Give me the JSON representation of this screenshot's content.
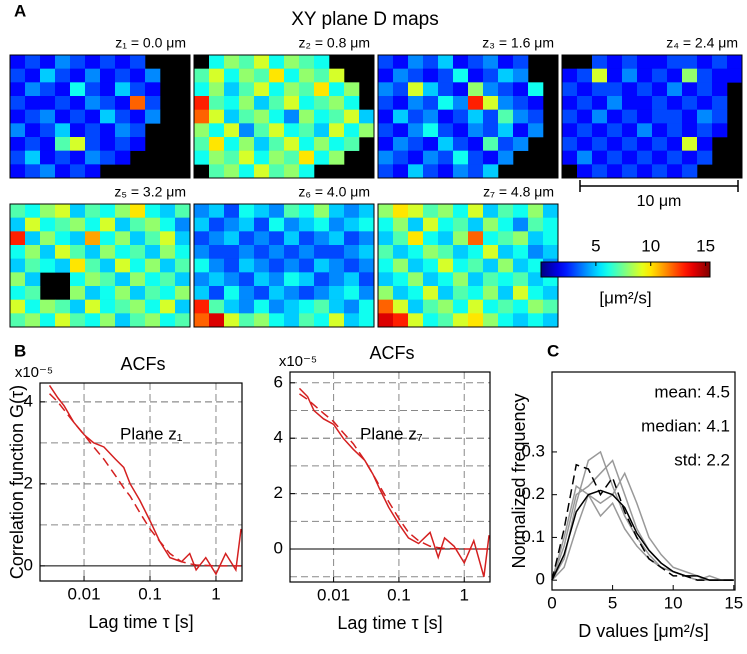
{
  "figure": {
    "panel_labels": [
      "A",
      "B",
      "C"
    ],
    "title": "XY plane D maps",
    "scale_bar": "10 μm"
  },
  "chart_data": [
    {
      "type": "heatmap",
      "title": "z₁ = 0.0 μm",
      "cmap": "jet",
      "zlim": [
        0,
        15.4
      ],
      "values": [
        [
          2,
          3,
          2,
          4,
          3,
          2,
          3,
          2,
          3,
          null,
          null,
          null
        ],
        [
          3,
          2,
          5,
          3,
          2,
          4,
          2,
          3,
          2,
          4,
          null,
          null
        ],
        [
          2,
          4,
          3,
          2,
          6,
          3,
          2,
          5,
          3,
          2,
          null,
          null
        ],
        [
          3,
          2,
          2,
          3,
          2,
          4,
          3,
          2,
          12,
          3,
          null,
          null
        ],
        [
          2,
          3,
          4,
          2,
          3,
          2,
          5,
          3,
          2,
          4,
          null,
          null
        ],
        [
          4,
          2,
          3,
          5,
          2,
          3,
          2,
          4,
          3,
          null,
          null,
          null
        ],
        [
          2,
          3,
          2,
          7,
          9,
          3,
          2,
          3,
          2,
          null,
          null,
          null
        ],
        [
          3,
          5,
          2,
          3,
          2,
          4,
          3,
          2,
          null,
          null,
          null,
          null
        ],
        [
          2,
          3,
          4,
          2,
          3,
          2,
          null,
          null,
          null,
          null,
          null,
          null
        ]
      ]
    },
    {
      "type": "heatmap",
      "title": "z₂ = 0.8 μm",
      "cmap": "jet",
      "zlim": [
        0,
        15.4
      ],
      "values": [
        [
          null,
          6,
          8,
          7,
          9,
          6,
          8,
          7,
          6,
          null,
          null,
          null
        ],
        [
          7,
          9,
          6,
          8,
          7,
          10,
          6,
          8,
          7,
          9,
          null,
          null
        ],
        [
          6,
          8,
          5,
          7,
          9,
          6,
          8,
          7,
          10,
          6,
          8,
          null
        ],
        [
          13,
          7,
          6,
          8,
          5,
          7,
          9,
          6,
          7,
          8,
          6,
          null
        ],
        [
          12,
          9,
          5,
          7,
          8,
          6,
          4,
          8,
          6,
          7,
          9,
          5
        ],
        [
          8,
          6,
          9,
          4,
          7,
          9,
          6,
          7,
          5,
          9,
          6,
          8
        ],
        [
          7,
          10,
          6,
          8,
          5,
          7,
          9,
          6,
          8,
          6,
          7,
          null
        ],
        [
          6,
          8,
          7,
          9,
          6,
          8,
          7,
          10,
          6,
          8,
          null,
          null
        ],
        [
          null,
          7,
          8,
          6,
          9,
          7,
          8,
          6,
          null,
          null,
          null,
          null
        ]
      ]
    },
    {
      "type": "heatmap",
      "title": "z₃ = 1.6 μm",
      "cmap": "jet",
      "zlim": [
        0,
        15.4
      ],
      "values": [
        [
          3,
          2,
          4,
          3,
          5,
          2,
          3,
          4,
          2,
          3,
          null,
          null
        ],
        [
          2,
          4,
          3,
          2,
          3,
          6,
          2,
          3,
          5,
          4,
          null,
          null
        ],
        [
          4,
          3,
          9,
          5,
          3,
          2,
          8,
          4,
          3,
          2,
          6,
          null
        ],
        [
          3,
          2,
          4,
          3,
          6,
          4,
          13,
          9,
          4,
          3,
          2,
          null
        ],
        [
          2,
          5,
          3,
          4,
          2,
          3,
          5,
          3,
          7,
          4,
          3,
          null
        ],
        [
          3,
          2,
          4,
          6,
          3,
          2,
          4,
          3,
          5,
          2,
          4,
          null
        ],
        [
          2,
          4,
          3,
          2,
          5,
          3,
          2,
          7,
          3,
          4,
          null,
          null
        ],
        [
          4,
          3,
          2,
          4,
          3,
          6,
          3,
          2,
          4,
          null,
          null,
          null
        ],
        [
          3,
          2,
          5,
          3,
          2,
          4,
          3,
          5,
          null,
          null,
          null,
          null
        ]
      ]
    },
    {
      "type": "heatmap",
      "title": "z₄ = 2.4 μm",
      "cmap": "jet",
      "zlim": [
        0,
        15.4
      ],
      "values": [
        [
          null,
          null,
          3,
          2,
          3,
          2,
          2,
          3,
          3,
          2,
          3,
          2
        ],
        [
          2,
          3,
          9,
          2,
          4,
          2,
          3,
          2,
          8,
          3,
          2,
          2
        ],
        [
          3,
          2,
          3,
          3,
          2,
          3,
          2,
          4,
          2,
          3,
          2,
          null
        ],
        [
          2,
          3,
          2,
          4,
          2,
          2,
          3,
          2,
          3,
          2,
          3,
          null
        ],
        [
          3,
          2,
          4,
          2,
          3,
          2,
          3,
          3,
          2,
          4,
          3,
          null
        ],
        [
          2,
          3,
          2,
          3,
          2,
          4,
          2,
          3,
          2,
          3,
          2,
          null
        ],
        [
          3,
          2,
          3,
          2,
          3,
          2,
          3,
          2,
          9,
          2,
          null,
          null
        ],
        [
          2,
          4,
          2,
          3,
          2,
          3,
          2,
          3,
          2,
          3,
          null,
          null
        ],
        [
          null,
          2,
          3,
          2,
          3,
          2,
          3,
          2,
          3,
          null,
          null,
          null
        ]
      ]
    },
    {
      "type": "heatmap",
      "title": "z₅ = 3.2 μm",
      "cmap": "jet",
      "zlim": [
        0,
        15.4
      ],
      "values": [
        [
          7,
          6,
          8,
          9,
          5,
          7,
          6,
          8,
          10,
          6,
          5,
          7
        ],
        [
          5,
          9,
          6,
          7,
          8,
          6,
          9,
          5,
          7,
          8,
          6,
          4
        ],
        [
          13,
          5,
          8,
          6,
          5,
          11,
          6,
          8,
          5,
          7,
          9,
          5
        ],
        [
          6,
          8,
          5,
          9,
          7,
          5,
          8,
          6,
          7,
          5,
          8,
          6
        ],
        [
          5,
          7,
          6,
          5,
          10,
          7,
          5,
          9,
          6,
          8,
          5,
          7
        ],
        [
          8,
          5,
          null,
          null,
          6,
          8,
          7,
          5,
          8,
          6,
          7,
          5
        ],
        [
          6,
          7,
          null,
          null,
          8,
          5,
          6,
          8,
          5,
          7,
          6,
          8
        ],
        [
          9,
          6,
          8,
          7,
          5,
          9,
          6,
          7,
          8,
          6,
          9,
          5
        ],
        [
          7,
          8,
          6,
          9,
          7,
          6,
          8,
          5,
          7,
          8,
          6,
          7
        ]
      ]
    },
    {
      "type": "heatmap",
      "title": "z₆ = 4.0 μm",
      "cmap": "jet",
      "zlim": [
        0,
        15.4
      ],
      "values": [
        [
          4,
          5,
          3,
          6,
          5,
          4,
          7,
          6,
          8,
          5,
          4,
          5
        ],
        [
          5,
          3,
          4,
          5,
          3,
          6,
          4,
          5,
          6,
          4,
          5,
          6
        ],
        [
          3,
          4,
          5,
          3,
          4,
          3,
          5,
          3,
          4,
          5,
          3,
          4
        ],
        [
          4,
          3,
          3,
          4,
          3,
          4,
          3,
          4,
          3,
          3,
          4,
          5
        ],
        [
          6,
          4,
          3,
          5,
          4,
          3,
          4,
          3,
          5,
          4,
          3,
          4
        ],
        [
          4,
          5,
          4,
          3,
          5,
          4,
          6,
          5,
          3,
          4,
          5,
          3
        ],
        [
          5,
          3,
          6,
          4,
          3,
          5,
          4,
          3,
          4,
          5,
          6,
          4
        ],
        [
          13,
          7,
          5,
          4,
          6,
          4,
          5,
          6,
          7,
          5,
          4,
          6
        ],
        [
          12,
          14,
          9,
          7,
          8,
          6,
          5,
          7,
          6,
          9,
          5,
          6
        ]
      ]
    },
    {
      "type": "heatmap",
      "title": "z₇ = 4.8 μm",
      "cmap": "jet",
      "zlim": [
        0,
        15.4
      ],
      "values": [
        [
          8,
          10,
          9,
          7,
          8,
          6,
          9,
          5,
          7,
          6,
          8,
          5
        ],
        [
          6,
          8,
          5,
          9,
          6,
          7,
          5,
          8,
          6,
          4,
          7,
          6
        ],
        [
          5,
          7,
          10,
          6,
          5,
          8,
          12,
          6,
          7,
          8,
          5,
          6
        ],
        [
          7,
          5,
          6,
          8,
          7,
          5,
          6,
          9,
          5,
          6,
          4,
          5
        ],
        [
          6,
          8,
          5,
          6,
          9,
          6,
          7,
          5,
          8,
          5,
          6,
          4
        ],
        [
          5,
          6,
          8,
          5,
          6,
          8,
          5,
          7,
          6,
          7,
          5,
          6
        ],
        [
          8,
          5,
          6,
          9,
          5,
          7,
          6,
          8,
          5,
          9,
          6,
          5
        ],
        [
          12,
          9,
          5,
          7,
          8,
          6,
          9,
          6,
          7,
          6,
          8,
          7
        ],
        [
          14,
          13,
          9,
          6,
          7,
          9,
          10,
          8,
          6,
          5,
          6,
          5
        ]
      ]
    },
    {
      "type": "colorbar",
      "cmap": "jet",
      "zlim": [
        0,
        15.4
      ],
      "ticks": [
        5,
        10,
        15
      ],
      "label": "[μm²/s]"
    },
    {
      "type": "line",
      "title": "ACFs",
      "y_multiplier": "x10⁻⁵",
      "ylabel": "Correlation function G(τ)",
      "xlabel": "Lag time τ [s]",
      "annotations": [
        "Plane z₁"
      ],
      "xlog": true,
      "xlim": [
        0.00215,
        2.48
      ],
      "xticks": [
        0.01,
        0.1,
        1
      ],
      "ylim": [
        -0.37,
        4.46
      ],
      "yticks": [
        0,
        2,
        4
      ],
      "ygrid": [
        1,
        2,
        3,
        4
      ],
      "grid": true,
      "x": [
        0.003,
        0.004,
        0.005,
        0.007,
        0.01,
        0.014,
        0.02,
        0.03,
        0.04,
        0.05,
        0.07,
        0.1,
        0.14,
        0.2,
        0.3,
        0.4,
        0.5,
        0.7,
        1,
        1.4,
        2,
        2.4
      ],
      "series": [
        {
          "color": "#d42020",
          "values": [
            4.4,
            4.1,
            3.9,
            3.5,
            3.2,
            3.0,
            2.9,
            2.6,
            2.4,
            2.0,
            1.6,
            1.1,
            0.6,
            0.2,
            0.1,
            0.3,
            -0.1,
            0.2,
            -0.2,
            0.3,
            -0.1,
            0.9
          ]
        },
        {
          "color": "#d42020",
          "dash": true,
          "values": [
            4.2,
            4.0,
            3.8,
            3.5,
            3.2,
            2.9,
            2.6,
            2.2,
            1.9,
            1.7,
            1.3,
            0.9,
            0.6,
            0.3,
            0.1,
            0.05,
            0.02,
            0.01,
            0,
            0,
            0,
            0
          ]
        }
      ]
    },
    {
      "type": "line",
      "title": "ACFs",
      "y_multiplier": "x10⁻⁵",
      "xlabel": "Lag time τ [s]",
      "annotations": [
        "Plane z₇"
      ],
      "xlog": true,
      "xlim": [
        0.00215,
        2.48
      ],
      "xticks": [
        0.01,
        0.1,
        1
      ],
      "ylim": [
        -1.19,
        6.39
      ],
      "yticks": [
        0,
        2,
        4,
        6
      ],
      "ygrid": [
        -1,
        1,
        2,
        3,
        4,
        5
      ],
      "grid": true,
      "x": [
        0.003,
        0.004,
        0.005,
        0.007,
        0.01,
        0.014,
        0.02,
        0.03,
        0.04,
        0.05,
        0.07,
        0.1,
        0.14,
        0.2,
        0.3,
        0.4,
        0.5,
        0.7,
        1,
        1.4,
        2,
        2.4
      ],
      "series": [
        {
          "color": "#d42020",
          "values": [
            5.8,
            5.5,
            5.0,
            4.7,
            4.5,
            4.0,
            3.6,
            3.2,
            2.7,
            2.2,
            1.5,
            0.9,
            0.4,
            0.2,
            0.6,
            -0.3,
            0.4,
            0.1,
            -0.5,
            0.3,
            -1.0,
            0.5
          ]
        },
        {
          "color": "#d42020",
          "dash": true,
          "values": [
            5.6,
            5.4,
            5.2,
            4.9,
            4.6,
            4.2,
            3.8,
            3.2,
            2.7,
            2.3,
            1.7,
            1.1,
            0.6,
            0.3,
            0.1,
            0.05,
            0.02,
            0.01,
            0,
            0,
            0,
            0
          ]
        }
      ]
    },
    {
      "type": "line",
      "ylabel": "Normalized frequency",
      "xlabel": "D values [μm²/s]",
      "annotations": [
        "mean: 4.5",
        "median: 4.1",
        "std: 2.2"
      ],
      "xlim": [
        0,
        15.1
      ],
      "xticks": [
        0,
        5,
        10,
        15
      ],
      "ylim": [
        -0.023,
        0.487
      ],
      "yticks": [
        0,
        0.1,
        0.2,
        0.3
      ],
      "grid": false,
      "x": [
        0,
        1,
        2,
        3,
        4,
        5,
        6,
        7,
        8,
        9,
        10,
        11,
        12,
        13,
        14,
        15
      ],
      "series": [
        {
          "color": "#999999",
          "values": [
            0,
            0.05,
            0.18,
            0.28,
            0.3,
            0.22,
            0.15,
            0.1,
            0.06,
            0.03,
            0.02,
            0.01,
            0,
            0.01,
            0,
            0
          ]
        },
        {
          "color": "#999999",
          "values": [
            0,
            0.08,
            0.2,
            0.22,
            0.25,
            0.28,
            0.2,
            0.12,
            0.07,
            0.04,
            0.02,
            0.01,
            0.01,
            0,
            0,
            0
          ]
        },
        {
          "color": "#999999",
          "values": [
            0,
            0.03,
            0.12,
            0.2,
            0.18,
            0.2,
            0.25,
            0.18,
            0.1,
            0.06,
            0.03,
            0.02,
            0.01,
            0,
            0,
            0
          ]
        },
        {
          "color": "#999999",
          "values": [
            0,
            0.1,
            0.22,
            0.2,
            0.15,
            0.18,
            0.12,
            0.08,
            0.05,
            0.03,
            0.02,
            0.01,
            0,
            0,
            0,
            0
          ]
        },
        {
          "color": "#000000",
          "dash": true,
          "values": [
            0,
            0.12,
            0.27,
            0.26,
            0.2,
            0.24,
            0.16,
            0.1,
            0.05,
            0.03,
            0.01,
            0.01,
            0,
            0,
            0,
            0
          ]
        },
        {
          "color": "#000000",
          "values": [
            0,
            0.06,
            0.16,
            0.2,
            0.21,
            0.2,
            0.17,
            0.11,
            0.07,
            0.04,
            0.02,
            0.01,
            0.01,
            0,
            0,
            0
          ]
        }
      ]
    }
  ]
}
